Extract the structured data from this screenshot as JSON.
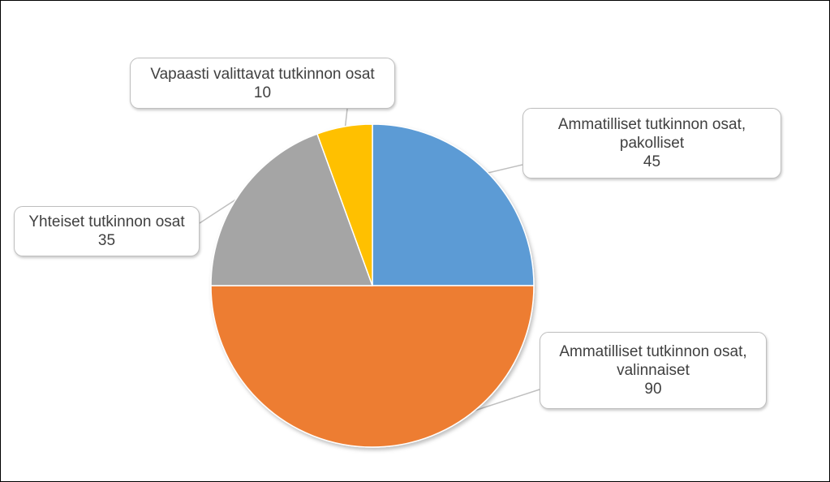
{
  "chart_data": {
    "type": "pie",
    "start_angle_deg": 0,
    "direction": "clockwise",
    "slices": [
      {
        "label_lines": [
          "Ammatilliset tutkinnon osat,",
          "pakolliset"
        ],
        "value": 45,
        "color": "#5b9bd5"
      },
      {
        "label_lines": [
          "Ammatilliset tutkinnon osat,",
          "valinnaiset"
        ],
        "value": 90,
        "color": "#ed7d31"
      },
      {
        "label_lines": [
          "Yhteiset tutkinnon osat"
        ],
        "value": 35,
        "color": "#a5a5a5"
      },
      {
        "label_lines": [
          "Vapaasti valittavat tutkinnon osat"
        ],
        "value": 10,
        "color": "#ffc000"
      }
    ],
    "legend": "none",
    "data_labels": "callout"
  }
}
